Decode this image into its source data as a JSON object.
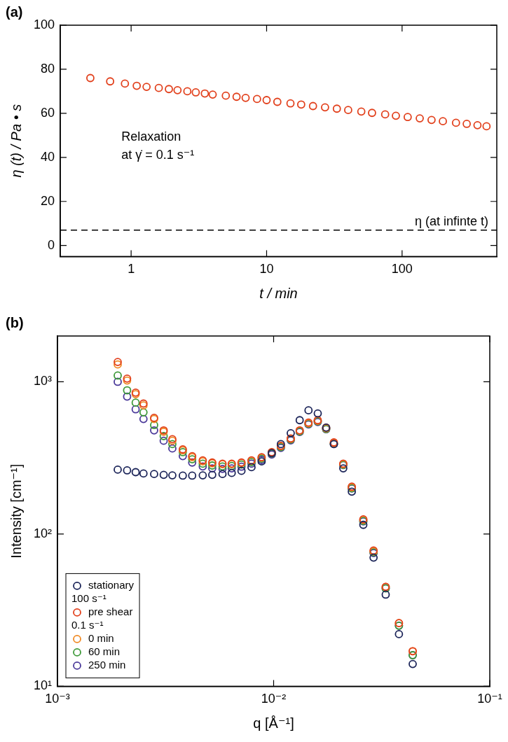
{
  "chart_data": [
    {
      "type": "scatter",
      "title": "(a)",
      "x_label": "t / min",
      "y_label": "η (t) / Pa • s",
      "log": "x",
      "grid": false,
      "xlim": [
        0.3,
        500
      ],
      "xticks": [
        1,
        10,
        100
      ],
      "ylim": [
        -5,
        100
      ],
      "yticks": [
        0,
        20,
        40,
        60,
        80,
        100
      ],
      "annotations": [
        "Relaxation",
        "at γ̇ = 0.1 s⁻¹"
      ],
      "reference_line": {
        "label": "η (at infinte t)",
        "value": 7,
        "line_style": "dashed"
      },
      "x": [
        0.5,
        0.7,
        0.9,
        1.1,
        1.3,
        1.6,
        1.9,
        2.2,
        2.6,
        3,
        3.5,
        4,
        5,
        6,
        7,
        8.5,
        10,
        12,
        15,
        18,
        22,
        27,
        33,
        40,
        50,
        60,
        75,
        90,
        110,
        135,
        165,
        200,
        250,
        300,
        360,
        420
      ],
      "series": [
        {
          "color": "#e2411d",
          "marker": "circle",
          "values": [
            76,
            74.5,
            73.5,
            72.5,
            72,
            71.5,
            71,
            70.5,
            70,
            69.5,
            69,
            68.5,
            68,
            67.5,
            67,
            66.5,
            66,
            65.2,
            64.5,
            64,
            63.3,
            62.7,
            62.1,
            61.5,
            60.8,
            60.2,
            59.5,
            58.9,
            58.3,
            57.7,
            57,
            56.4,
            55.7,
            55.2,
            54.6,
            54.1
          ]
        }
      ]
    },
    {
      "type": "scatter",
      "title": "(b)",
      "x_label": "q [Å⁻¹]",
      "y_label": "Intensity [cm⁻¹]",
      "log": true,
      "grid": false,
      "legend": "lower left",
      "xlim": [
        0.001,
        0.1
      ],
      "xticks": [
        {
          "value": 0.001,
          "label": "10⁻³"
        },
        {
          "value": 0.01,
          "label": "10⁻²"
        },
        {
          "value": 0.1,
          "label": "10⁻¹"
        }
      ],
      "ylim": [
        10,
        2000
      ],
      "yticks": [
        {
          "value": 10,
          "label": "10¹"
        },
        {
          "value": 100,
          "label": "10²"
        },
        {
          "value": 1000,
          "label": "10³"
        }
      ],
      "x": [
        0.0019,
        0.0021,
        0.0023,
        0.0025,
        0.0028,
        0.0031,
        0.0034,
        0.0038,
        0.0042,
        0.0047,
        0.0052,
        0.0058,
        0.0064,
        0.0071,
        0.0079,
        0.0088,
        0.0098,
        0.0108,
        0.012,
        0.0132,
        0.0145,
        0.016,
        0.0175,
        0.019,
        0.021,
        0.023,
        0.026,
        0.029,
        0.033,
        0.038,
        0.044
      ],
      "series": [
        {
          "name": "stationary",
          "color": "#1c2559",
          "marker": "circle",
          "values": [
            265,
            262,
            255,
            250,
            248,
            245,
            243,
            242,
            242,
            243,
            245,
            248,
            252,
            260,
            275,
            300,
            340,
            390,
            460,
            560,
            650,
            620,
            500,
            390,
            270,
            190,
            115,
            70,
            40,
            22,
            14
          ]
        },
        {
          "name": "pre shear",
          "group": "100 s⁻¹",
          "color": "#e2411d",
          "marker": "circle",
          "values": [
            1350,
            1050,
            850,
            720,
            580,
            480,
            420,
            360,
            325,
            305,
            295,
            290,
            290,
            295,
            305,
            320,
            345,
            380,
            425,
            480,
            540,
            560,
            500,
            400,
            290,
            205,
            125,
            78,
            45,
            26,
            17
          ]
        },
        {
          "name": "0 min",
          "group": "0.1 s⁻¹",
          "color": "#f08a24",
          "marker": "circle",
          "values": [
            1300,
            1020,
            830,
            700,
            570,
            470,
            410,
            355,
            320,
            300,
            292,
            288,
            288,
            293,
            303,
            318,
            343,
            378,
            423,
            478,
            535,
            555,
            495,
            395,
            288,
            203,
            124,
            77,
            45,
            26,
            17
          ]
        },
        {
          "name": "60 min",
          "group": "0.1 s⁻¹",
          "color": "#3f9a3a",
          "marker": "circle",
          "values": [
            1100,
            880,
            730,
            630,
            520,
            440,
            390,
            345,
            310,
            290,
            282,
            278,
            280,
            286,
            297,
            313,
            338,
            373,
            418,
            472,
            530,
            550,
            490,
            392,
            285,
            200,
            122,
            76,
            44,
            25,
            16
          ]
        },
        {
          "name": "250 min",
          "group": "0.1 s⁻¹",
          "color": "#4b3a9a",
          "marker": "circle",
          "values": [
            1000,
            800,
            660,
            570,
            480,
            410,
            365,
            325,
            295,
            278,
            270,
            268,
            270,
            277,
            290,
            307,
            333,
            368,
            413,
            468,
            525,
            545,
            488,
            390,
            284,
            199,
            121,
            75,
            44,
            25,
            16
          ]
        }
      ]
    }
  ]
}
